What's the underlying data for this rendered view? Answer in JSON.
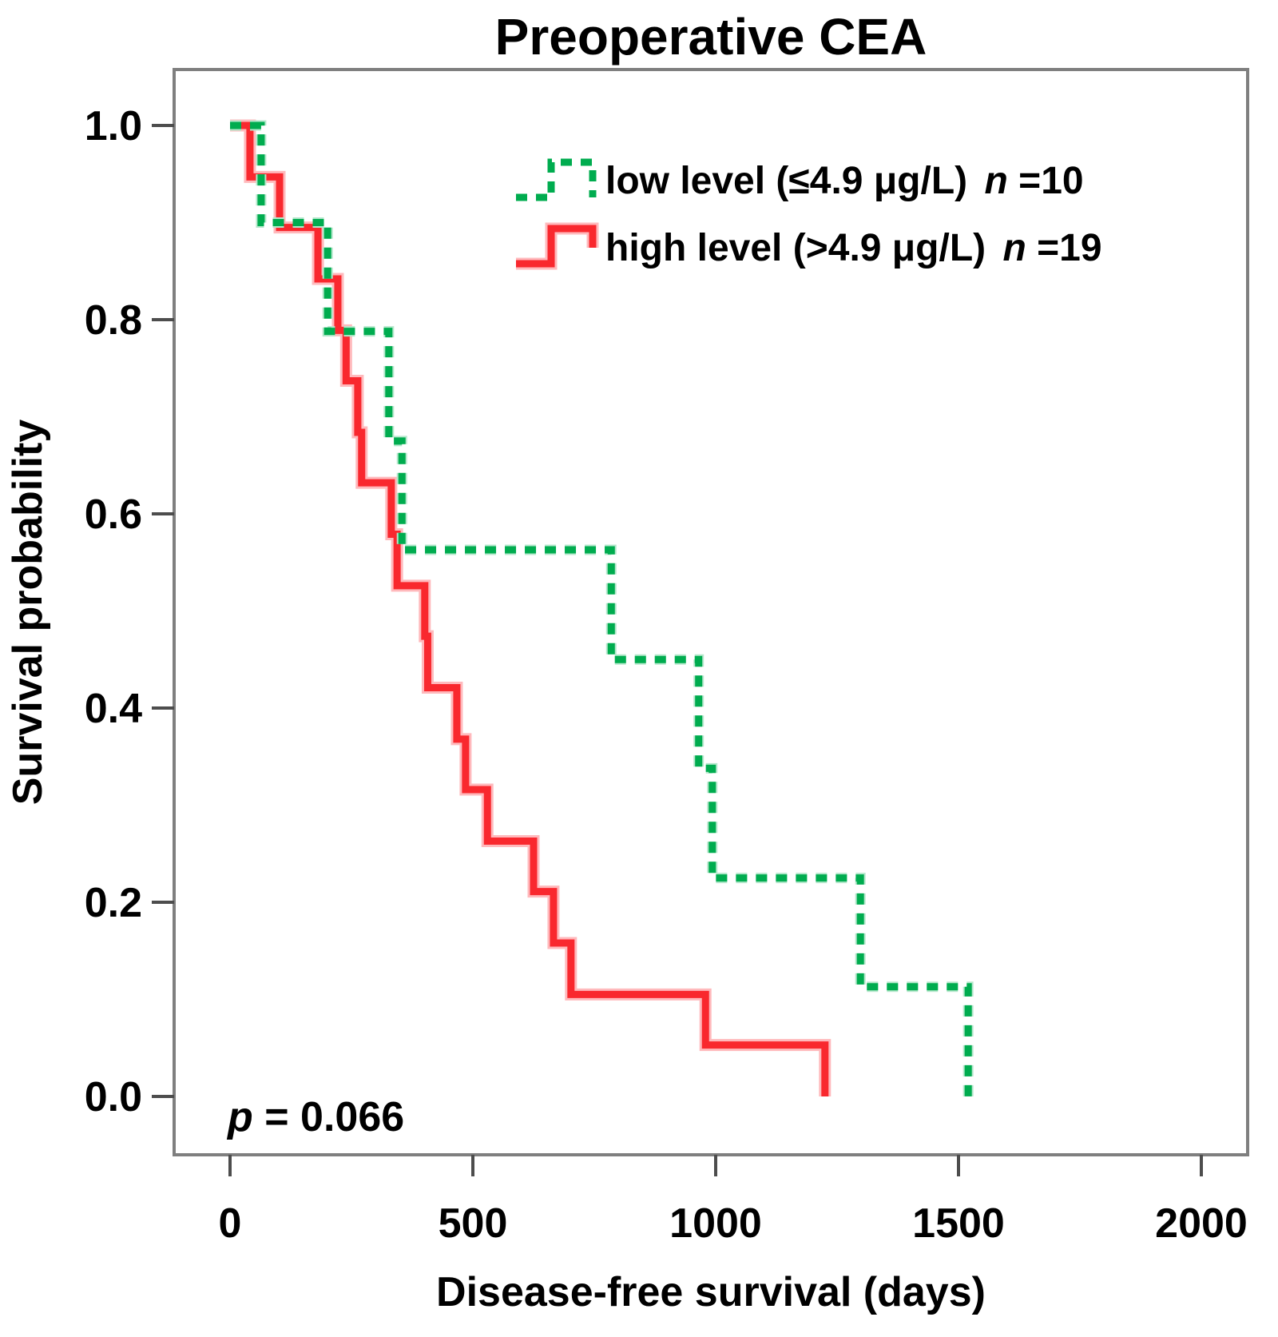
{
  "figure": {
    "title": "Preoperative CEA",
    "p_annotation": {
      "symbol": "p",
      "text": " = 0.066"
    }
  },
  "x_axis": {
    "label": "Disease-free survival (days)",
    "tick_labels": [
      "0",
      "500",
      "1000",
      "1500",
      "2000"
    ],
    "tick_values": [
      0,
      500,
      1000,
      1500,
      2000
    ],
    "min": 0,
    "max": 2000
  },
  "y_axis": {
    "label": "Survival probability",
    "tick_labels": [
      "0.0",
      "0.2",
      "0.4",
      "0.6",
      "0.8",
      "1.0"
    ],
    "tick_values": [
      0,
      0.2,
      0.4,
      0.6,
      0.8,
      1.0
    ],
    "min": 0,
    "max": 1
  },
  "legend": {
    "items": [
      {
        "series": "low",
        "label_prefix": "low level (≤4.9 μg/L) ",
        "n_symbol": "n",
        "n_text": "=10",
        "color": "#00ac4f",
        "style": "dashed"
      },
      {
        "series": "high",
        "label_prefix": "high level (>4.9 μg/L) ",
        "n_symbol": "n",
        "n_text": "=19",
        "color": "#f9282e",
        "style": "solid"
      }
    ]
  },
  "colors": {
    "low": "#00ac4f",
    "low_halo": "#b5e8cc",
    "high": "#f9282e",
    "high_halo": "#ffb9bc",
    "frame": "#7f7f7f",
    "tick": "#4d4d4d",
    "text": "#000000"
  },
  "chart_data": {
    "type": "line",
    "subtype": "kaplan_meier_step",
    "title": "Preoperative CEA",
    "xlabel": "Disease-free survival (days)",
    "ylabel": "Survival probability",
    "xlim": [
      0,
      2000
    ],
    "ylim": [
      0,
      1.0
    ],
    "grid": false,
    "legend_position": "top-center-inside",
    "p_value": 0.066,
    "series": [
      {
        "name": "low level (≤4.9 μg/L)",
        "n": 10,
        "color": "#00ac4f",
        "line_style": "dashed",
        "steps_day_survival": [
          [
            0,
            1.0
          ],
          [
            64,
            0.9
          ],
          [
            201,
            0.788
          ],
          [
            327,
            0.675
          ],
          [
            354,
            0.563
          ],
          [
            785,
            0.45
          ],
          [
            965,
            0.338
          ],
          [
            993,
            0.225
          ],
          [
            1298,
            0.113
          ],
          [
            1520,
            0.0
          ]
        ]
      },
      {
        "name": "high level (>4.9 μg/L)",
        "n": 19,
        "color": "#f9282e",
        "line_style": "solid",
        "steps_day_survival": [
          [
            0,
            1.0
          ],
          [
            41,
            0.947
          ],
          [
            102,
            0.895
          ],
          [
            181,
            0.842
          ],
          [
            222,
            0.789
          ],
          [
            239,
            0.737
          ],
          [
            263,
            0.684
          ],
          [
            271,
            0.632
          ],
          [
            332,
            0.579
          ],
          [
            344,
            0.526
          ],
          [
            401,
            0.474
          ],
          [
            407,
            0.421
          ],
          [
            467,
            0.368
          ],
          [
            485,
            0.316
          ],
          [
            530,
            0.263
          ],
          [
            625,
            0.211
          ],
          [
            666,
            0.158
          ],
          [
            702,
            0.105
          ],
          [
            979,
            0.053
          ],
          [
            1225,
            0.0
          ]
        ]
      }
    ]
  }
}
